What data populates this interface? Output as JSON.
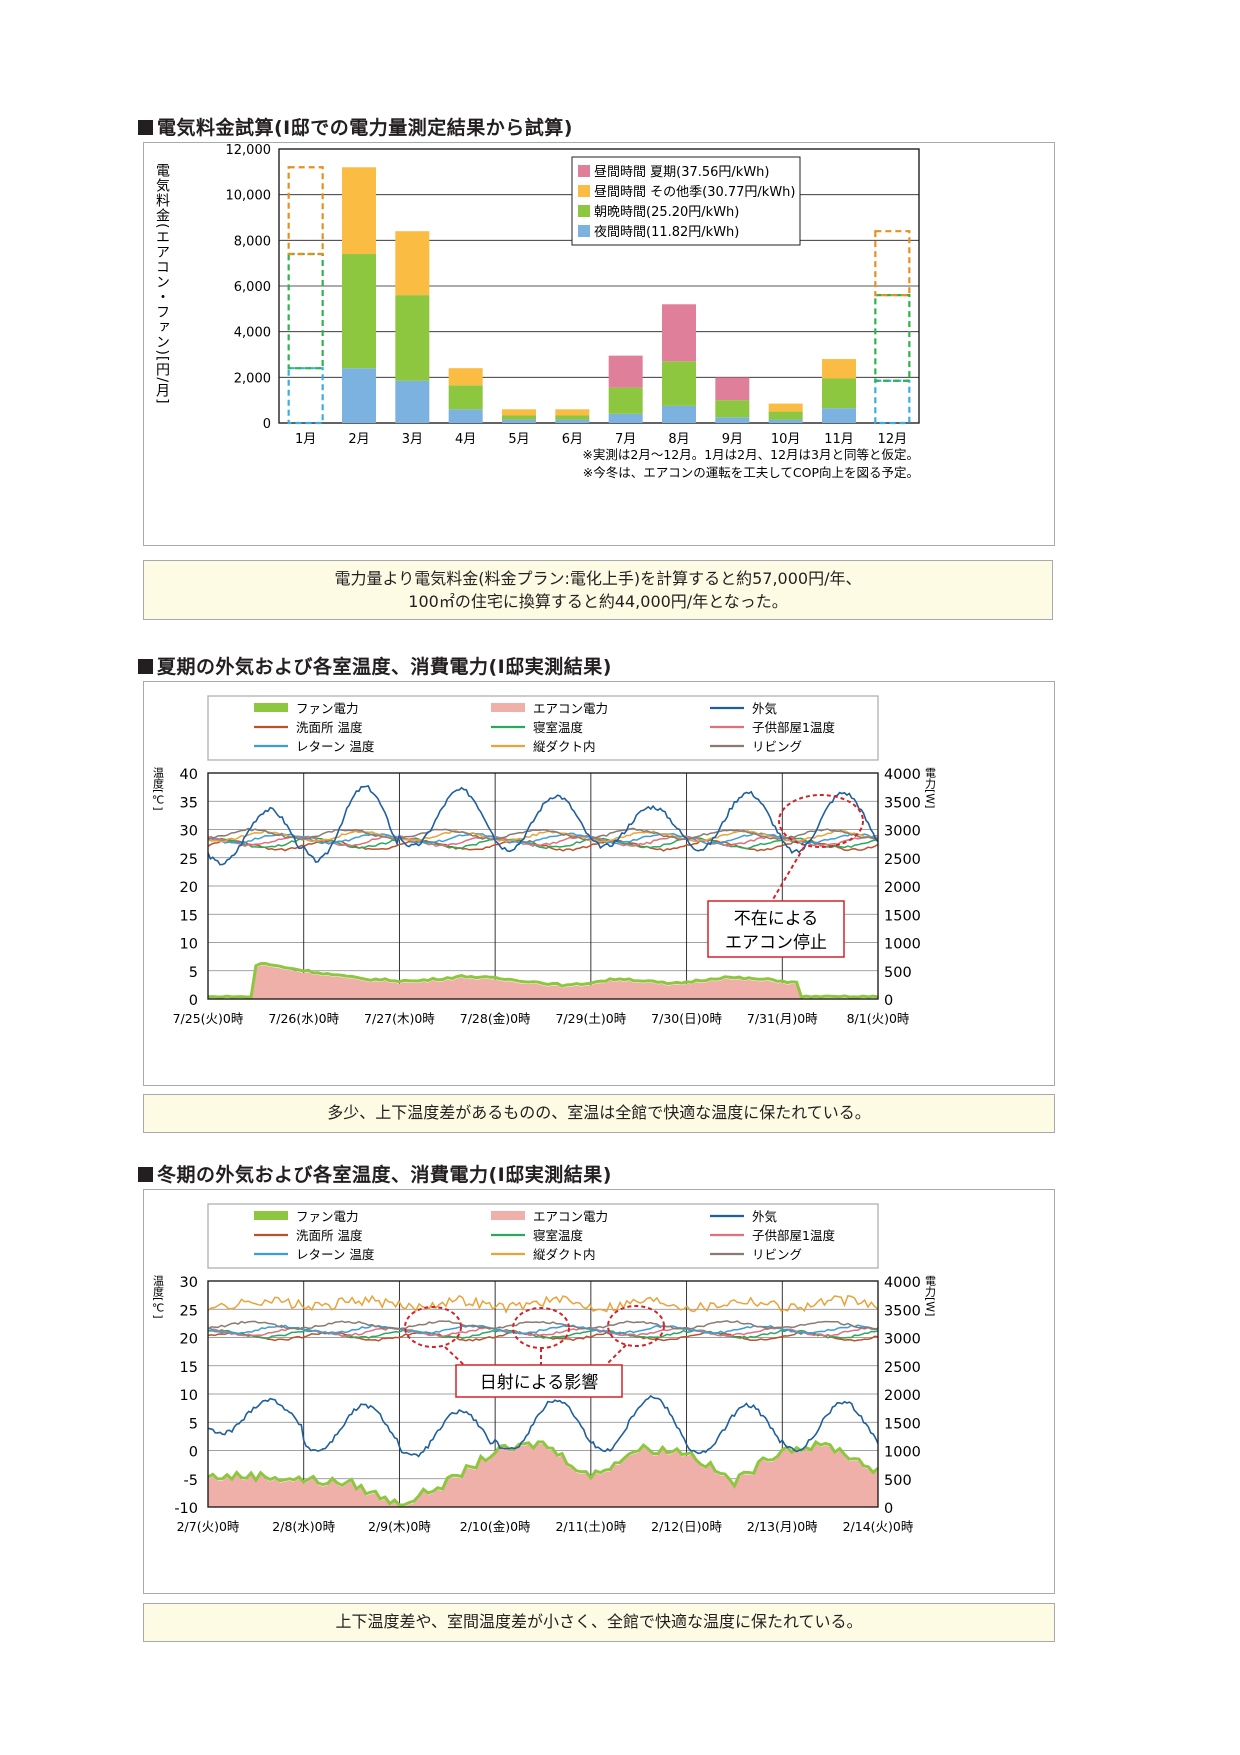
{
  "sections": {
    "cost_title": "電気料金試算(I邸での電力量測定結果から試算)",
    "summer_title": "夏期の外気および各室温度、消費電力(I邸実測結果)",
    "winter_title": "冬期の外気および各室温度、消費電力(I邸実測結果)"
  },
  "notes": {
    "cost_line1": "電力量より電気料金(料金プラン:電化上手)を計算すると約57,000円/年、",
    "cost_line2": "100㎡の住宅に換算すると約44,000円/年となった。",
    "summer": "多少、上下温度差があるものの、室温は全館で快適な温度に保たれている。",
    "winter": "上下温度差や、室間温度差が小さく、全館で快適な温度に保たれている。"
  },
  "chart_data": [
    {
      "type": "bar",
      "stacked": true,
      "ylabel": "電気料金(エアコン・ファン)[円/月]",
      "ylim": [
        0,
        12000
      ],
      "yticks": [
        "0",
        "2,000",
        "4,000",
        "6,000",
        "8,000",
        "10,000",
        "12,000"
      ],
      "categories": [
        "1月",
        "2月",
        "3月",
        "4月",
        "5月",
        "6月",
        "7月",
        "8月",
        "9月",
        "10月",
        "11月",
        "12月"
      ],
      "estimated": [
        true,
        false,
        false,
        false,
        false,
        false,
        false,
        false,
        false,
        false,
        false,
        true
      ],
      "series": [
        {
          "name": "夜間時間(11.82円/kWh)",
          "color": "#7bb2e0",
          "values": [
            2400,
            2400,
            1850,
            600,
            150,
            150,
            400,
            750,
            250,
            150,
            650,
            1850
          ]
        },
        {
          "name": "朝晩時間(25.20円/kWh)",
          "color": "#8dc63f",
          "values": [
            5000,
            5000,
            3750,
            1050,
            180,
            180,
            1150,
            1950,
            750,
            350,
            1300,
            3750
          ]
        },
        {
          "name": "昼間時間 その他季(30.77円/kWh)",
          "color": "#fbbc44",
          "values": [
            3800,
            3800,
            2800,
            750,
            270,
            270,
            0,
            0,
            0,
            350,
            850,
            2800
          ]
        },
        {
          "name": "昼間時間 夏期(37.56円/kWh)",
          "color": "#e07f9a",
          "values": [
            0,
            0,
            0,
            0,
            0,
            0,
            1400,
            2500,
            1000,
            0,
            0,
            0
          ]
        }
      ],
      "legend_order": [
        "昼間時間 夏期(37.56円/kWh)",
        "昼間時間 その他季(30.77円/kWh)",
        "朝晩時間(25.20円/kWh)",
        "夜間時間(11.82円/kWh)"
      ],
      "legend_position": "top-right",
      "grid": true,
      "footnotes": [
        "※実測は2月～12月。1月は2月、12月は3月と同等と仮定。",
        "※今冬は、エアコンの運転を工夫してCOP向上を図る予定。"
      ]
    },
    {
      "type": "line",
      "ylabel_left": "温度[℃]",
      "ylabel_right": "電力[W]",
      "ylim_left": [
        0,
        40
      ],
      "ylim_right": [
        0,
        4000
      ],
      "yticks_left": [
        "0",
        "5",
        "10",
        "15",
        "20",
        "25",
        "30",
        "35",
        "40"
      ],
      "yticks_right": [
        "0",
        "500",
        "1000",
        "1500",
        "2000",
        "2500",
        "3000",
        "3500",
        "4000"
      ],
      "xticks": [
        "7/25(火)0時",
        "7/26(水)0時",
        "7/27(木)0時",
        "7/28(金)0時",
        "7/29(土)0時",
        "7/30(日)0時",
        "7/31(月)0時",
        "8/1(火)0時"
      ],
      "legend": [
        {
          "name": "ファン電力",
          "color": "#8dc63f",
          "kind": "bar"
        },
        {
          "name": "エアコン電力",
          "color": "#eeb0a8",
          "kind": "bar"
        },
        {
          "name": "外気",
          "color": "#1f5f9e",
          "kind": "line"
        },
        {
          "name": "洗面所 温度",
          "color": "#c0502a",
          "kind": "line"
        },
        {
          "name": "寝室温度",
          "color": "#2aa85c",
          "kind": "line"
        },
        {
          "name": "子供部屋1温度",
          "color": "#e0707e",
          "kind": "line"
        },
        {
          "name": "レターン 温度",
          "color": "#3a9fd8",
          "kind": "line"
        },
        {
          "name": "縦ダクト内",
          "color": "#e8a33a",
          "kind": "line"
        },
        {
          "name": "リビング",
          "color": "#8a7a72",
          "kind": "line"
        }
      ],
      "outdoor_daily_max_c": [
        33.5,
        37.5,
        37,
        36,
        34,
        36.5,
        36.5
      ],
      "outdoor_daily_min_c": [
        24,
        24.5,
        27,
        26.5,
        27,
        26.5,
        26
      ],
      "indoor_range_c": [
        26,
        30
      ],
      "power_w_approx": [
        0,
        600,
        450,
        320,
        280,
        370,
        300,
        200,
        330,
        230,
        350,
        300,
        180,
        0
      ],
      "annotation": "不在による\nエアコン停止",
      "annotation_lines": [
        "不在による",
        "エアコン停止"
      ]
    },
    {
      "type": "line",
      "ylabel_left": "温度[℃]",
      "ylabel_right": "電力[W]",
      "ylim_left": [
        -10,
        30
      ],
      "ylim_right": [
        0,
        4000
      ],
      "yticks_left": [
        "-10",
        "-5",
        "0",
        "5",
        "10",
        "15",
        "20",
        "25",
        "30"
      ],
      "yticks_right": [
        "0",
        "500",
        "1000",
        "1500",
        "2000",
        "2500",
        "3000",
        "3500",
        "4000"
      ],
      "xticks": [
        "2/7(火)0時",
        "2/8(水)0時",
        "2/9(木)0時",
        "2/10(金)0時",
        "2/11(土)0時",
        "2/12(日)0時",
        "2/13(月)0時",
        "2/14(火)0時"
      ],
      "legend": [
        {
          "name": "ファン電力",
          "color": "#8dc63f",
          "kind": "bar"
        },
        {
          "name": "エアコン電力",
          "color": "#eeb0a8",
          "kind": "bar"
        },
        {
          "name": "外気",
          "color": "#1f5f9e",
          "kind": "line"
        },
        {
          "name": "洗面所 温度",
          "color": "#c0502a",
          "kind": "line"
        },
        {
          "name": "寝室温度",
          "color": "#2aa85c",
          "kind": "line"
        },
        {
          "name": "子供部屋1温度",
          "color": "#e0707e",
          "kind": "line"
        },
        {
          "name": "レターン 温度",
          "color": "#3a9fd8",
          "kind": "line"
        },
        {
          "name": "縦ダクト内",
          "color": "#e8a33a",
          "kind": "line"
        },
        {
          "name": "リビング",
          "color": "#8a7a72",
          "kind": "line"
        }
      ],
      "outdoor_daily_max_c": [
        9,
        8,
        7,
        9,
        9.5,
        8,
        8.5
      ],
      "outdoor_daily_min_c": [
        3,
        0,
        -1,
        0,
        0,
        -0.5,
        0
      ],
      "indoor_range_c": [
        19,
        23
      ],
      "duct_range_c": [
        23,
        27
      ],
      "power_w_approx": [
        500,
        520,
        450,
        380,
        0,
        400,
        950,
        1100,
        500,
        1000,
        950,
        400,
        1000,
        1050,
        600
      ],
      "annotation": "日射による影響"
    }
  ]
}
